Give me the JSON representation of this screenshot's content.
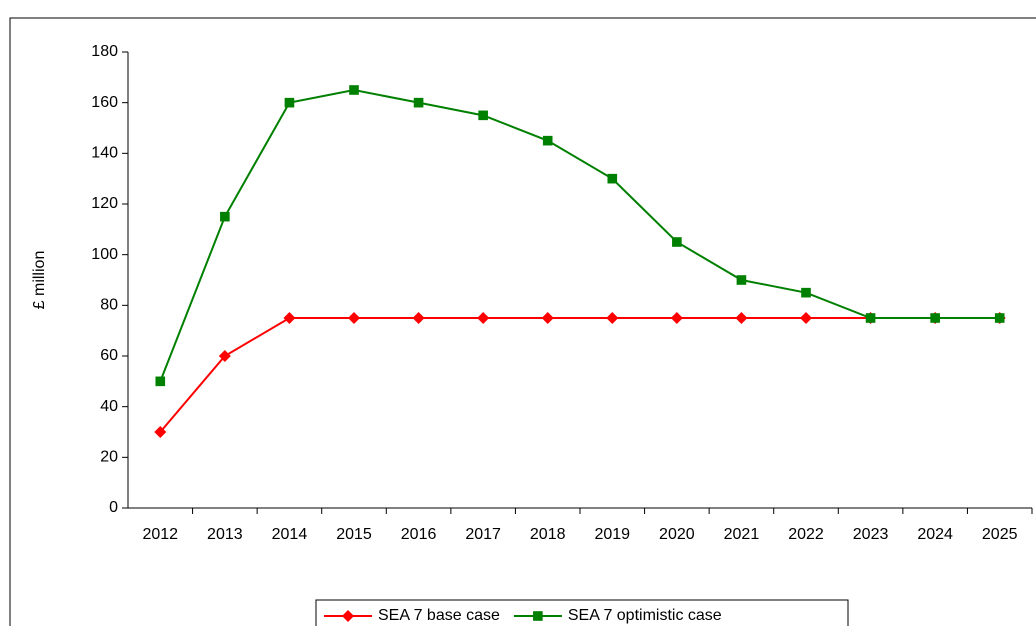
{
  "chart_data": {
    "type": "line",
    "y_label": "£ million",
    "categories": [
      "2012",
      "2013",
      "2014",
      "2015",
      "2016",
      "2017",
      "2018",
      "2019",
      "2020",
      "2021",
      "2022",
      "2023",
      "2024",
      "2025"
    ],
    "series": [
      {
        "name": "SEA 7 base case",
        "color": "#ff0000",
        "marker": "diamond",
        "values": [
          30,
          60,
          75,
          75,
          75,
          75,
          75,
          75,
          75,
          75,
          75,
          75,
          75,
          75
        ]
      },
      {
        "name": "SEA 7 optimistic case",
        "color": "#008000",
        "marker": "square",
        "values": [
          50,
          115,
          160,
          165,
          160,
          155,
          145,
          130,
          105,
          90,
          85,
          75,
          75,
          75
        ]
      }
    ],
    "ylim": [
      0,
      180
    ],
    "yticks": [
      0,
      20,
      40,
      60,
      80,
      100,
      120,
      140,
      160,
      180
    ],
    "legend": "bottom"
  }
}
